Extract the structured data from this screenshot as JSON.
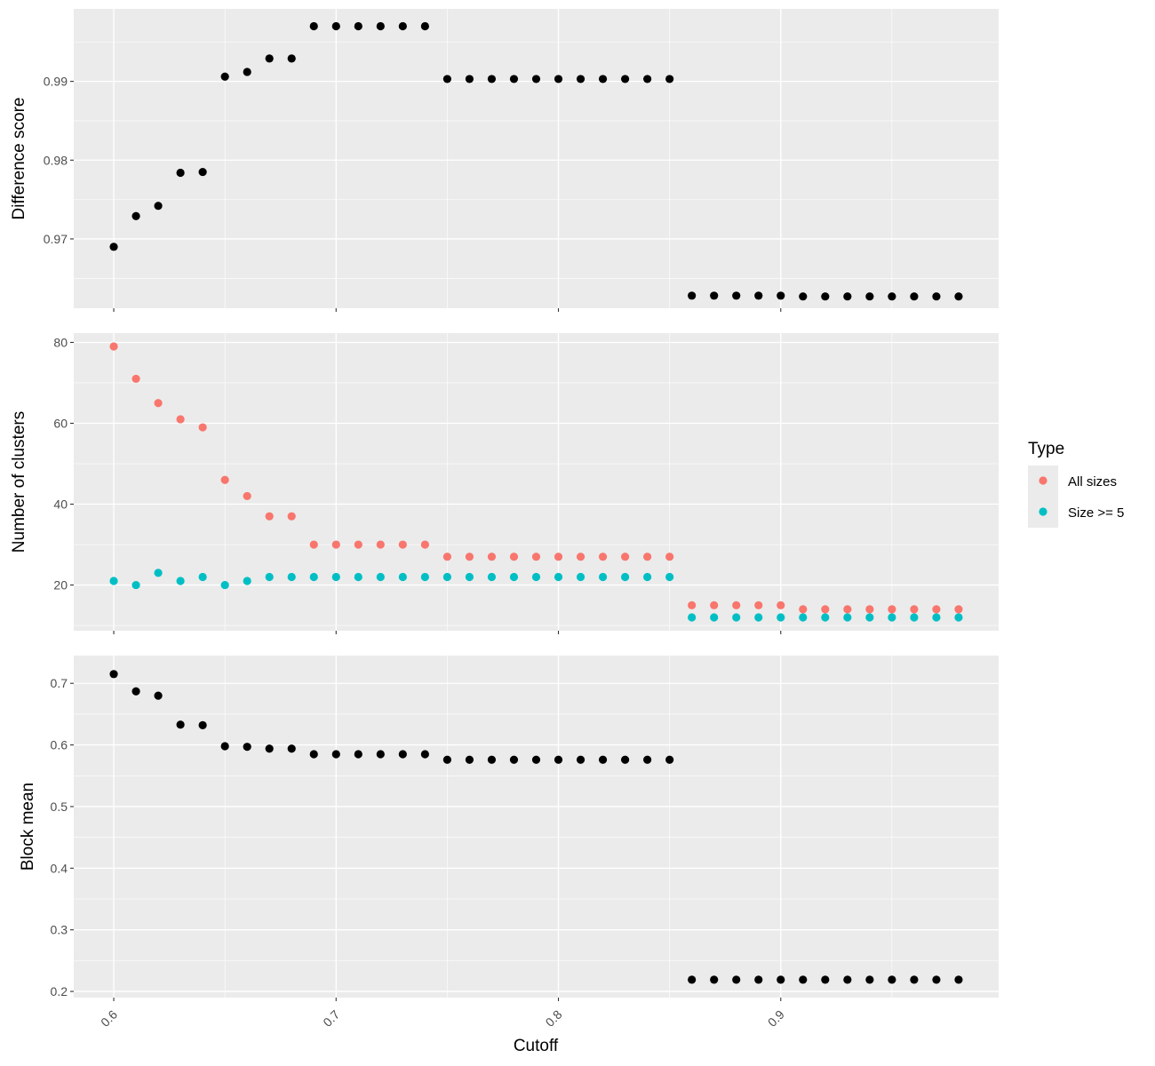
{
  "chart_data": {
    "type": "scatter",
    "x_label": "Cutoff",
    "x_range": [
      0.582,
      0.998
    ],
    "x_ticks": [
      0.6,
      0.7,
      0.8,
      0.9
    ],
    "x_tick_labels": [
      "0.6",
      "0.7",
      "0.8",
      "0.9"
    ],
    "x": [
      0.6,
      0.61,
      0.62,
      0.63,
      0.64,
      0.65,
      0.66,
      0.67,
      0.68,
      0.69,
      0.7,
      0.71,
      0.72,
      0.73,
      0.74,
      0.75,
      0.76,
      0.77,
      0.78,
      0.79,
      0.8,
      0.81,
      0.82,
      0.83,
      0.84,
      0.85,
      0.86,
      0.87,
      0.88,
      0.89,
      0.9,
      0.91,
      0.92,
      0.93,
      0.94,
      0.95,
      0.96,
      0.97,
      0.98
    ],
    "grid": true,
    "legend": {
      "title": "Type",
      "placement": "right",
      "entries": [
        {
          "name": "All sizes",
          "color": "#F8766D"
        },
        {
          "name": "Size >= 5",
          "color": "#00BFC4"
        }
      ]
    },
    "panels": [
      {
        "id": "difference-score",
        "ylabel": "Difference score",
        "ylim": [
          0.9612,
          0.9992
        ],
        "y_ticks": [
          0.97,
          0.98,
          0.99
        ],
        "y_tick_labels": [
          "0.97",
          "0.98",
          "0.99"
        ],
        "series": [
          {
            "color": "#000000",
            "values": [
              0.969,
              0.9729,
              0.9742,
              0.9784,
              0.9785,
              0.9906,
              0.9912,
              0.9929,
              0.9929,
              0.997,
              0.997,
              0.997,
              0.997,
              0.997,
              0.997,
              0.9903,
              0.9903,
              0.9903,
              0.9903,
              0.9903,
              0.9903,
              0.9903,
              0.9903,
              0.9903,
              0.9903,
              0.9903,
              0.9628,
              0.9628,
              0.9628,
              0.9628,
              0.9628,
              0.9627,
              0.9627,
              0.9627,
              0.9627,
              0.9627,
              0.9627,
              0.9627,
              0.9627
            ]
          }
        ]
      },
      {
        "id": "number-of-clusters",
        "ylabel": "Number of clusters",
        "ylim": [
          8.7,
          82.3
        ],
        "y_ticks": [
          20,
          40,
          60,
          80
        ],
        "y_tick_labels": [
          "20",
          "40",
          "60",
          "80"
        ],
        "series": [
          {
            "name": "All sizes",
            "color": "#F8766D",
            "values": [
              79,
              71,
              65,
              61,
              59,
              46,
              42,
              37,
              37,
              30,
              30,
              30,
              30,
              30,
              30,
              27,
              27,
              27,
              27,
              27,
              27,
              27,
              27,
              27,
              27,
              27,
              15,
              15,
              15,
              15,
              15,
              14,
              14,
              14,
              14,
              14,
              14,
              14,
              14
            ]
          },
          {
            "name": "Size >= 5",
            "color": "#00BFC4",
            "values": [
              21,
              20,
              23,
              21,
              22,
              20,
              21,
              22,
              22,
              22,
              22,
              22,
              22,
              22,
              22,
              22,
              22,
              22,
              22,
              22,
              22,
              22,
              22,
              22,
              22,
              22,
              12,
              12,
              12,
              12,
              12,
              12,
              12,
              12,
              12,
              12,
              12,
              12,
              12
            ]
          }
        ]
      },
      {
        "id": "block-mean",
        "ylabel": "Block mean",
        "ylim": [
          0.19,
          0.745
        ],
        "y_ticks": [
          0.2,
          0.3,
          0.4,
          0.5,
          0.6,
          0.7
        ],
        "y_tick_labels": [
          "0.2",
          "0.3",
          "0.4",
          "0.5",
          "0.6",
          "0.7"
        ],
        "series": [
          {
            "color": "#000000",
            "values": [
              0.715,
              0.687,
              0.68,
              0.633,
              0.632,
              0.598,
              0.597,
              0.594,
              0.594,
              0.585,
              0.585,
              0.585,
              0.585,
              0.585,
              0.585,
              0.576,
              0.576,
              0.576,
              0.576,
              0.576,
              0.576,
              0.576,
              0.576,
              0.576,
              0.576,
              0.576,
              0.219,
              0.219,
              0.219,
              0.219,
              0.219,
              0.219,
              0.219,
              0.219,
              0.219,
              0.219,
              0.219,
              0.219,
              0.219
            ]
          }
        ]
      }
    ]
  }
}
